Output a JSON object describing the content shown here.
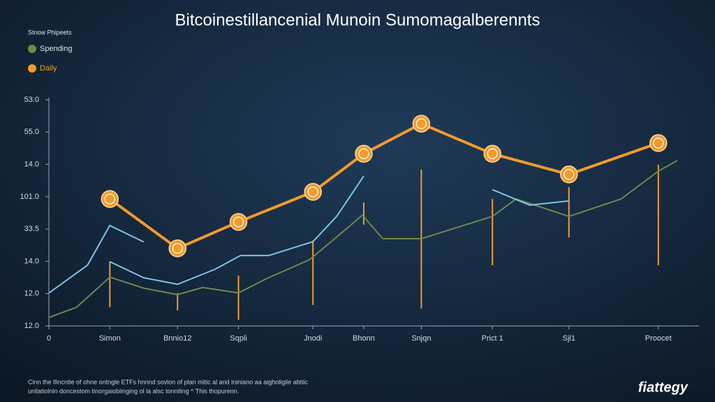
{
  "chart_data": {
    "type": "line",
    "title": "Bitcoinestillancenial Munoin Sumomagalberennts",
    "legend_title": "Stnow Phipeets",
    "legend": "upper left",
    "grid": false,
    "ylim": [
      0,
      7
    ],
    "yticks": [
      {
        "value": 0,
        "label": "12.0"
      },
      {
        "value": 1,
        "label": "12.0"
      },
      {
        "value": 2,
        "label": "14.0"
      },
      {
        "value": 3,
        "label": "33.5"
      },
      {
        "value": 4,
        "label": "101.0"
      },
      {
        "value": 5,
        "label": "14.0"
      },
      {
        "value": 6,
        "label": "55.0"
      },
      {
        "value": 7,
        "label": "53.0"
      }
    ],
    "xlim": [
      0,
      9.6
    ],
    "xticks": [
      {
        "value": 0,
        "label": "0"
      },
      {
        "value": 0.9,
        "label": "Simon"
      },
      {
        "value": 1.9,
        "label": "Bnnio12"
      },
      {
        "value": 2.8,
        "label": "Sqpli"
      },
      {
        "value": 3.9,
        "label": "Jnodi"
      },
      {
        "value": 4.65,
        "label": "Bhonn"
      },
      {
        "value": 5.5,
        "label": "Snjqn"
      },
      {
        "value": 6.55,
        "label": "Prict 1"
      },
      {
        "value": 7.68,
        "label": "Sjl1"
      },
      {
        "value": 9.0,
        "label": "Proocet"
      }
    ],
    "series": [
      {
        "name": "Spending",
        "color": "#6e8a4a",
        "x": [
          0,
          0.41,
          0.9,
          1.4,
          1.9,
          2.27,
          2.8,
          3.2,
          3.85,
          4.43,
          4.63,
          4.93,
          5.5,
          6.06,
          6.55,
          6.9,
          7.68,
          8.45,
          9.0,
          9.28
        ],
        "values": [
          0.26,
          0.58,
          1.51,
          1.17,
          0.97,
          1.19,
          1.02,
          1.45,
          2.05,
          3.07,
          3.43,
          2.7,
          2.7,
          3.07,
          3.39,
          3.93,
          3.39,
          3.93,
          4.79,
          5.12
        ]
      },
      {
        "name": "Daily",
        "color": "#f39a2b",
        "x": [
          0.9,
          1.9,
          2.8,
          3.9,
          4.65,
          5.5,
          6.55,
          7.68,
          9.0
        ],
        "values": [
          3.93,
          2.4,
          3.22,
          4.15,
          5.33,
          6.26,
          5.33,
          4.69,
          5.66
        ],
        "low": [
          0.58,
          0.48,
          0.19,
          0.65,
          3.13,
          0.54,
          1.88,
          2.74,
          1.88
        ],
        "high": [
          1.99,
          1.02,
          1.56,
          2.64,
          3.82,
          4.84,
          3.93,
          4.3,
          4.99
        ]
      },
      {
        "color": "#7fc3e6",
        "x": [
          0,
          0.57,
          0.9,
          1.4,
          1.6,
          0.9,
          1.4,
          1.9,
          2.45,
          2.83,
          3.25,
          3.9,
          4.25,
          4.65,
          5.0,
          6.55,
          7.1,
          7.68
        ],
        "values": [
          1.02,
          1.88,
          3.11,
          2.6,
          null,
          1.99,
          1.49,
          1.29,
          1.75,
          2.18,
          2.18,
          2.61,
          3.39,
          4.64,
          null,
          4.22,
          3.74,
          3.87
        ]
      }
    ],
    "footnote": [
      "Cinn the Ilincntie of ohne ontngle ETFs hnnnd sovlon of plan mitic al and ininiano aa aigholiglie abtiic",
      "unilatiolnin doncestom tinorgaiobiinging ol la alsc tonniling ^ This thopurenn."
    ],
    "brand": "fiattegy"
  }
}
